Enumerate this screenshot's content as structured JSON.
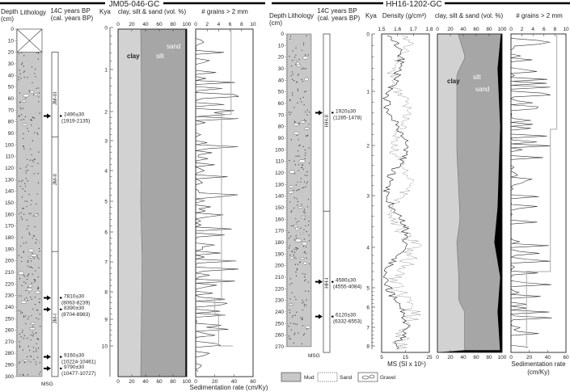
{
  "jm": {
    "title": "JM05-046-GC",
    "h_depth": "Depth",
    "h_cm": "(cm)",
    "h_lith": "Lithology",
    "h_c14": "14C years BP",
    "h_cal": "(cal. years BP)",
    "h_kya": "Kya",
    "h_grain": "clay, silt & sand (vol. %)",
    "h_grains": "# grains > 2 mm",
    "lbl_clay": "clay",
    "lbl_silt": "silt",
    "lbl_sand": "sand",
    "msg": "MSG",
    "sedrate_label": "Sedimentation rate (cm/Ky)",
    "units": [
      "JM-III",
      "JM-II",
      "JM-I"
    ],
    "dates": [
      {
        "age": "2490±30",
        "cal": "(1919-2135)",
        "depth": 75
      },
      {
        "age": "7810±30",
        "cal": "(8063-8239)",
        "depth": 232
      },
      {
        "age": "8390±30",
        "cal": "(8704-8983)",
        "depth": 242
      },
      {
        "age": "9160±30",
        "cal": "(10224-10461)",
        "depth": 283
      },
      {
        "age": "9790±30",
        "cal": "(10477-10727)",
        "depth": 293
      }
    ]
  },
  "hh": {
    "title": "HH16-1202-GC",
    "h_depth": "Depth",
    "h_cm": "(cm)",
    "h_lith": "Lithology",
    "h_c14": "14C years BP",
    "h_cal": "(cal. years BP)",
    "h_kya": "Kya",
    "h_density": "Density (g/cm³)",
    "h_grain": "clay, silt & sand (vol. %)",
    "h_grains": "# grains > 2 mm",
    "lbl_clay": "clay",
    "lbl_silt": "silt",
    "lbl_sand": "sand",
    "msg": "MSG",
    "ms_label": "MS (SI x 10⁵)",
    "sedrate_label_1": "Sedimentation rate",
    "sedrate_label_2": "(cm/Ky)",
    "units": [
      "HH-II",
      "HH-I"
    ],
    "dates": [
      {
        "age": "1920±30",
        "cal": "(1285-1478)",
        "depth": 68
      },
      {
        "age": "4580±30",
        "cal": "(4555-4084)",
        "depth": 214
      },
      {
        "age": "6120±30",
        "cal": "(6332-6553)",
        "depth": 244
      }
    ]
  },
  "legend": {
    "mud": "Mud",
    "sand": "Sand",
    "gravel": "Gravel"
  },
  "colors": {
    "mud": "#c8c8c8",
    "clay": "#d2d2d2",
    "silt": "#a6a6a6",
    "sand": "#000000",
    "sedrate": "#aaaaaa"
  },
  "chart_data": [
    {
      "type": "area",
      "core": "JM05-046-GC",
      "title": "clay, silt & sand (vol. %)",
      "xlim": [
        0,
        100
      ],
      "x_ticks": [
        0,
        20,
        40,
        60,
        80,
        100
      ],
      "y_axis": "Depth (cm)",
      "ylim": [
        0,
        300
      ],
      "series": [
        {
          "name": "clay",
          "depth": [
            0,
            50,
            100,
            150,
            200,
            250,
            300
          ],
          "upper_pct": [
            33,
            34,
            34,
            33,
            35,
            34,
            33
          ]
        },
        {
          "name": "sand",
          "depth": [
            0,
            300
          ],
          "lower_pct": [
            98,
            98
          ]
        }
      ]
    },
    {
      "type": "line",
      "core": "JM05-046-GC",
      "title": "# grains > 2 mm",
      "xlim": [
        0,
        10
      ],
      "x_ticks": [
        0,
        2,
        4,
        6,
        8,
        10
      ],
      "secondary_x": {
        "label": "Sedimentation rate (cm/Ky)",
        "xlim": [
          0,
          60
        ],
        "ticks": [
          0,
          20,
          40,
          60
        ]
      },
      "sedimentation_rate": {
        "kya": [
          0,
          2.1,
          8.3,
          8.8,
          10.3,
          11
        ],
        "rate": [
          37,
          27,
          20,
          24,
          39,
          39
        ]
      },
      "kya_ticks": [
        0,
        1,
        2,
        3,
        4,
        5,
        6,
        7,
        8,
        9,
        10
      ]
    },
    {
      "type": "line",
      "core": "HH16-1202-GC",
      "title": "Density (g/cm³)",
      "xlim": [
        1.5,
        1.8
      ],
      "x_ticks": [
        1.5,
        1.6,
        1.7,
        1.8
      ],
      "secondary_x": {
        "label": "MS (SI x 10⁵)",
        "xlim": [
          5,
          25
        ],
        "ticks": [
          5,
          15,
          25
        ]
      },
      "y_axis": "Depth (cm)",
      "ylim": [
        0,
        270
      ]
    },
    {
      "type": "area",
      "core": "HH16-1202-GC",
      "title": "clay, silt & sand (vol. %)",
      "xlim": [
        0,
        100
      ],
      "x_ticks": [
        0,
        20,
        40,
        60,
        80,
        100
      ],
      "series": [
        {
          "name": "clay",
          "depth": [
            0,
            20,
            35,
            100,
            160,
            180,
            210,
            230,
            240,
            275
          ],
          "upper_pct": [
            32,
            43,
            30,
            30,
            35,
            30,
            33,
            33,
            42,
            42
          ]
        },
        {
          "name": "sand",
          "depth": [
            0,
            30,
            80,
            150,
            180,
            210,
            240,
            275
          ],
          "lower_pct": [
            98,
            93,
            97,
            93,
            88,
            97,
            93,
            97
          ]
        }
      ]
    },
    {
      "type": "line",
      "core": "HH16-1202-GC",
      "title": "# grains > 2 mm",
      "xlim": [
        0,
        10
      ],
      "x_ticks": [
        0,
        2,
        4,
        6,
        8,
        10
      ],
      "secondary_x": {
        "label": "Sedimentation rate (cm/Ky)",
        "xlim": [
          0,
          60
        ],
        "ticks": [
          0,
          20,
          40,
          60
        ]
      },
      "sedimentation_rate": {
        "kya": [
          0,
          1.7,
          4.6,
          8.2
        ],
        "rate": [
          50,
          43,
          17,
          17
        ]
      },
      "kya_ticks": [
        0,
        1,
        2,
        3,
        4,
        5,
        6,
        7,
        8
      ]
    }
  ]
}
